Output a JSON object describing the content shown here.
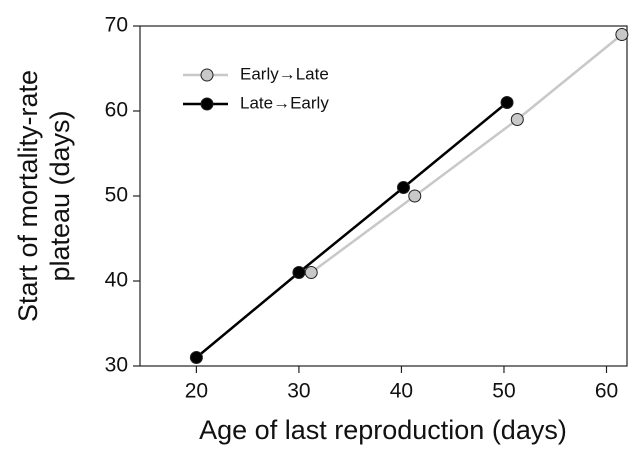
{
  "chart_data": {
    "type": "line",
    "xlabel": "Age of last reproduction (days)",
    "ylabel": [
      "Start of mortality-rate",
      "plateau (days)"
    ],
    "xlim": [
      14.5,
      62
    ],
    "xticks": [
      20,
      30,
      40,
      50,
      60
    ],
    "ylim": [
      30,
      70
    ],
    "yticks": [
      30,
      40,
      50,
      60,
      70
    ],
    "legend": "upper left",
    "series": [
      {
        "name": "Early→Late",
        "color": "#c8c8c8",
        "marker_fill": "#c8c8c8",
        "x": [
          31.2,
          41.3,
          51.3,
          61.5
        ],
        "values": [
          41,
          50,
          59,
          69
        ]
      },
      {
        "name": "Late→Early",
        "color": "#000000",
        "marker_fill": "#000000",
        "x": [
          20,
          30,
          40.2,
          50.3
        ],
        "values": [
          31,
          41,
          51,
          61
        ]
      }
    ]
  }
}
